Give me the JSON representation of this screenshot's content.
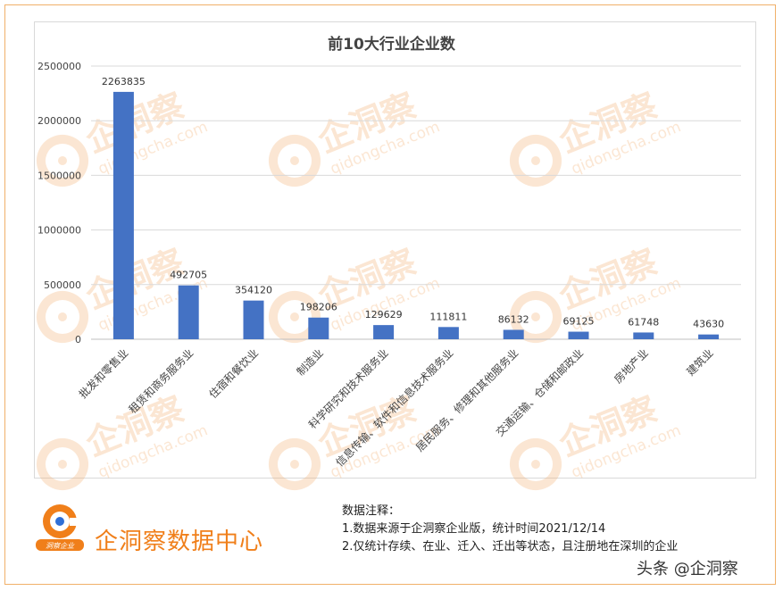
{
  "chart_data": {
    "type": "bar",
    "title": "前10大行业企业数",
    "categories": [
      "批发和零售业",
      "租赁和商务服务业",
      "住宿和餐饮业",
      "制造业",
      "科学研究和技术服务业",
      "信息传输、软件和信息技术服务业",
      "居民服务、修理和其他服务业",
      "交通运输、仓储和邮政业",
      "房地产业",
      "建筑业"
    ],
    "values": [
      2263835,
      492705,
      354120,
      198206,
      129629,
      111811,
      86132,
      69125,
      61748,
      43630
    ],
    "ylim": [
      0,
      2500000
    ],
    "yticks": [
      0,
      500000,
      1000000,
      1500000,
      2000000,
      2500000
    ],
    "grid": true,
    "legend": "none",
    "bar_color": "#4472c4"
  },
  "watermark": {
    "brand": "企洞察",
    "domain": "qidongcha.com"
  },
  "footer": {
    "brand_name": "企洞察数据中心",
    "logo_badge": "洞察企业",
    "notes_title": "数据注释：",
    "note_1": "1.数据来源于企洞察企业版，统计时间2021/12/14",
    "note_2": "2.仅统计存续、在业、迁入、迁出等状态，且注册地在深圳的企业",
    "source_tag": "头条 @企洞察"
  },
  "colors": {
    "accent": "#f07f1a",
    "watermark": "#f5b070"
  }
}
